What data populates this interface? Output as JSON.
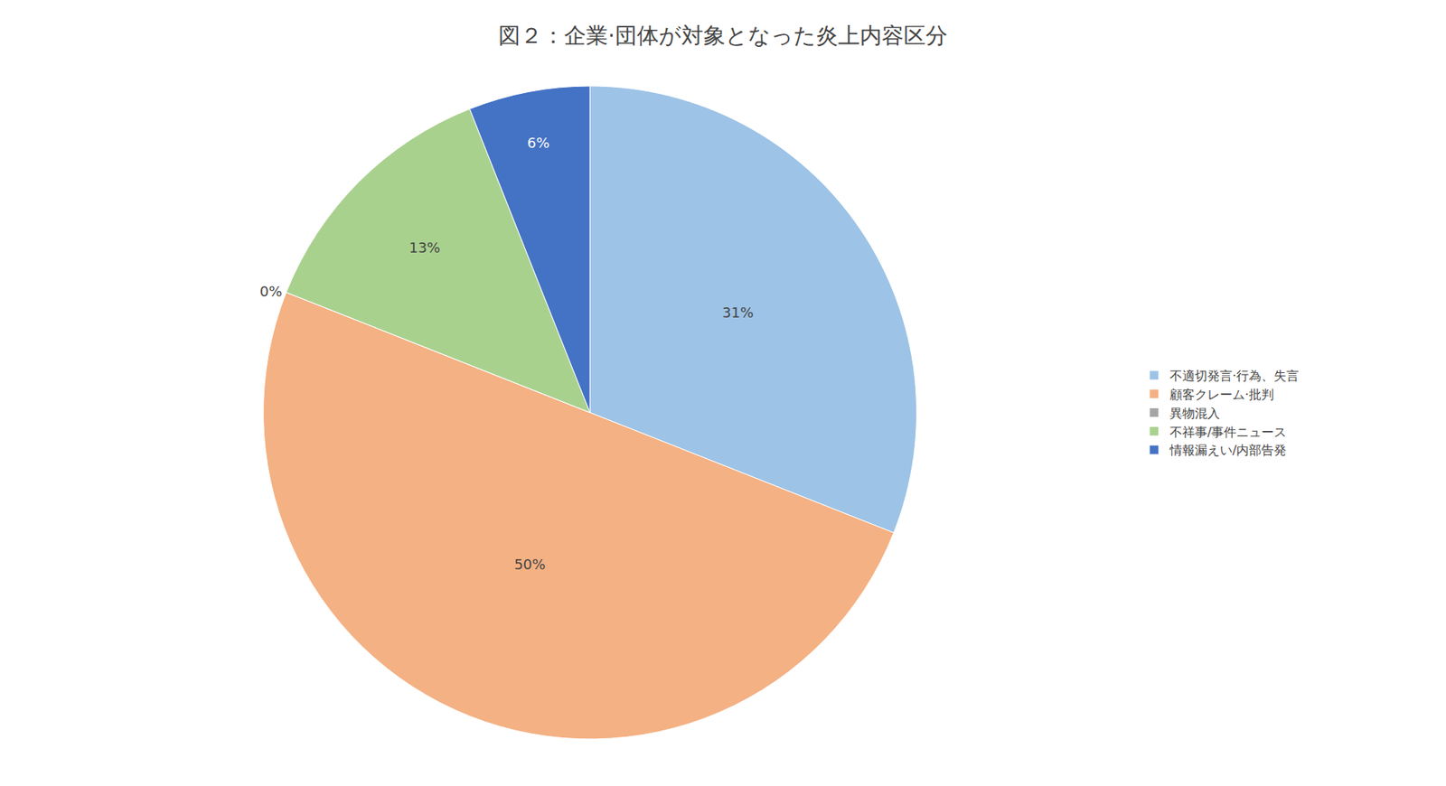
{
  "chart_data": {
    "type": "pie",
    "title": "図２：企業·団体が対象となった炎上内容区分",
    "categories": [
      "不適切発言·行為、失言",
      "顧客クレーム·批判",
      "異物混入",
      "不祥事/事件ニュース",
      "情報漏えい/内部告発"
    ],
    "values": [
      31,
      50,
      0,
      13,
      6
    ],
    "value_labels": [
      "31%",
      "50%",
      "0%",
      "13%",
      "6%"
    ],
    "colors": [
      "#9DC3E6",
      "#F4B183",
      "#A5A5A5",
      "#A9D18E",
      "#4472C4"
    ],
    "data_labels": true,
    "legend": "right"
  }
}
